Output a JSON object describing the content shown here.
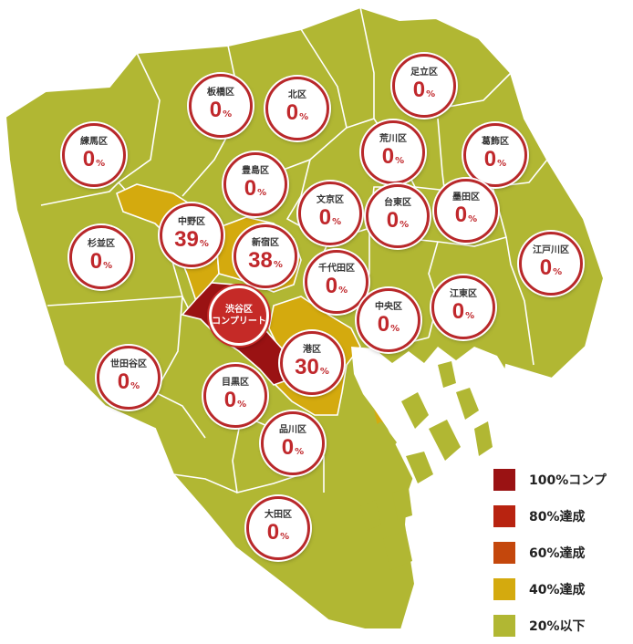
{
  "colors": {
    "level_20_below": "#b1b733",
    "level_40": "#d4aa0e",
    "complete": "#9a1213",
    "border": "#ffffff",
    "sea": "#ffffff"
  },
  "wards": [
    {
      "id": "adachi",
      "name": "足立区",
      "percent": "0",
      "unit": "%"
    },
    {
      "id": "itabashi",
      "name": "板橋区",
      "percent": "0",
      "unit": "%"
    },
    {
      "id": "kita",
      "name": "北区",
      "percent": "0",
      "unit": "%"
    },
    {
      "id": "nerima",
      "name": "練馬区",
      "percent": "0",
      "unit": "%"
    },
    {
      "id": "arakawa",
      "name": "荒川区",
      "percent": "0",
      "unit": "%"
    },
    {
      "id": "katsushika",
      "name": "葛飾区",
      "percent": "0",
      "unit": "%"
    },
    {
      "id": "toshima",
      "name": "豊島区",
      "percent": "0",
      "unit": "%"
    },
    {
      "id": "bunkyo",
      "name": "文京区",
      "percent": "0",
      "unit": "%"
    },
    {
      "id": "taito",
      "name": "台東区",
      "percent": "0",
      "unit": "%"
    },
    {
      "id": "sumida",
      "name": "墨田区",
      "percent": "0",
      "unit": "%"
    },
    {
      "id": "nakano",
      "name": "中野区",
      "percent": "39",
      "unit": "%"
    },
    {
      "id": "suginami",
      "name": "杉並区",
      "percent": "0",
      "unit": "%"
    },
    {
      "id": "shinjuku",
      "name": "新宿区",
      "percent": "38",
      "unit": "%"
    },
    {
      "id": "edogawa",
      "name": "江戸川区",
      "percent": "0",
      "unit": "%"
    },
    {
      "id": "chiyoda",
      "name": "千代田区",
      "percent": "0",
      "unit": "%"
    },
    {
      "id": "koto",
      "name": "江東区",
      "percent": "0",
      "unit": "%"
    },
    {
      "id": "chuo",
      "name": "中央区",
      "percent": "0",
      "unit": "%"
    },
    {
      "id": "minato",
      "name": "港区",
      "percent": "30",
      "unit": "%"
    },
    {
      "id": "setagaya",
      "name": "世田谷区",
      "percent": "0",
      "unit": "%"
    },
    {
      "id": "meguro",
      "name": "目黒区",
      "percent": "0",
      "unit": "%"
    },
    {
      "id": "shinagawa",
      "name": "品川区",
      "percent": "0",
      "unit": "%"
    },
    {
      "id": "ota",
      "name": "大田区",
      "percent": "0",
      "unit": "%"
    }
  ],
  "complete_badge": {
    "id": "shibuya",
    "line1": "渋谷区",
    "line2": "コンプリート"
  },
  "legend": [
    {
      "label": "100%コンプ",
      "color": "#9a1213"
    },
    {
      "label": "80%達成",
      "color": "#b82310"
    },
    {
      "label": "60%達成",
      "color": "#c4470c"
    },
    {
      "label": "40%達成",
      "color": "#d4aa0e"
    },
    {
      "label": "20%以下",
      "color": "#b1b733"
    }
  ]
}
